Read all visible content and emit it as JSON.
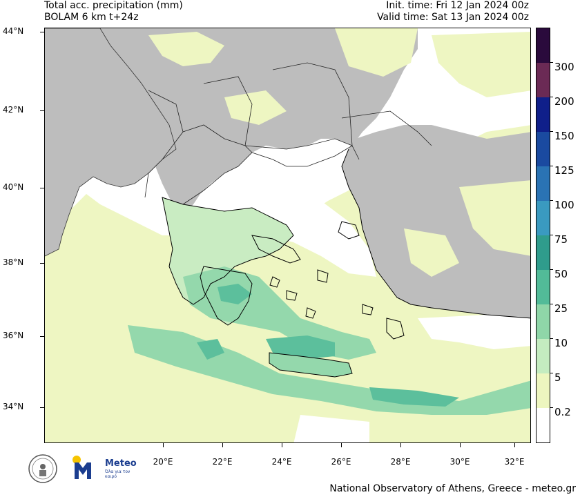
{
  "header": {
    "title_line1": "Total acc. precipitation (mm)",
    "title_line2": "BOLAM 6 km t+24z",
    "init_time": "Init. time: Fri 12 Jan 2024 00z",
    "valid_time": "Valid time: Sat 13 Jan 2024 00z"
  },
  "axes": {
    "lat_labels": [
      "44°N",
      "42°N",
      "40°N",
      "38°N",
      "36°N",
      "34°N"
    ],
    "lon_labels": [
      "20°E",
      "22°E",
      "24°E",
      "26°E",
      "28°E",
      "30°E",
      "32°E"
    ]
  },
  "colorbar": {
    "labels": [
      "300",
      "200",
      "150",
      "125",
      "100",
      "75",
      "50",
      "25",
      "10",
      "5",
      "0.2"
    ],
    "colors": [
      "#2a0a3c",
      "#6b2a55",
      "#0f1f8a",
      "#1a4aa0",
      "#2a73b4",
      "#3a9ac0",
      "#2f9c8c",
      "#52bb98",
      "#8fd6a8",
      "#c4ecc0",
      "#edf6bf",
      "#ffffff"
    ]
  },
  "map_colors": {
    "sea": "#ffffff",
    "land": "#bdbdbd",
    "light": "#eef6c2",
    "pale_green": "#c9ecc2",
    "green": "#94d8ac",
    "mid_green": "#5cbf9c",
    "dark_green": "#38a48e"
  },
  "logo": {
    "brand": "Meteo",
    "tagline": "Όλα για τον καιρό"
  },
  "footer": "National Observatory of Athens, Greece - meteo.gr"
}
